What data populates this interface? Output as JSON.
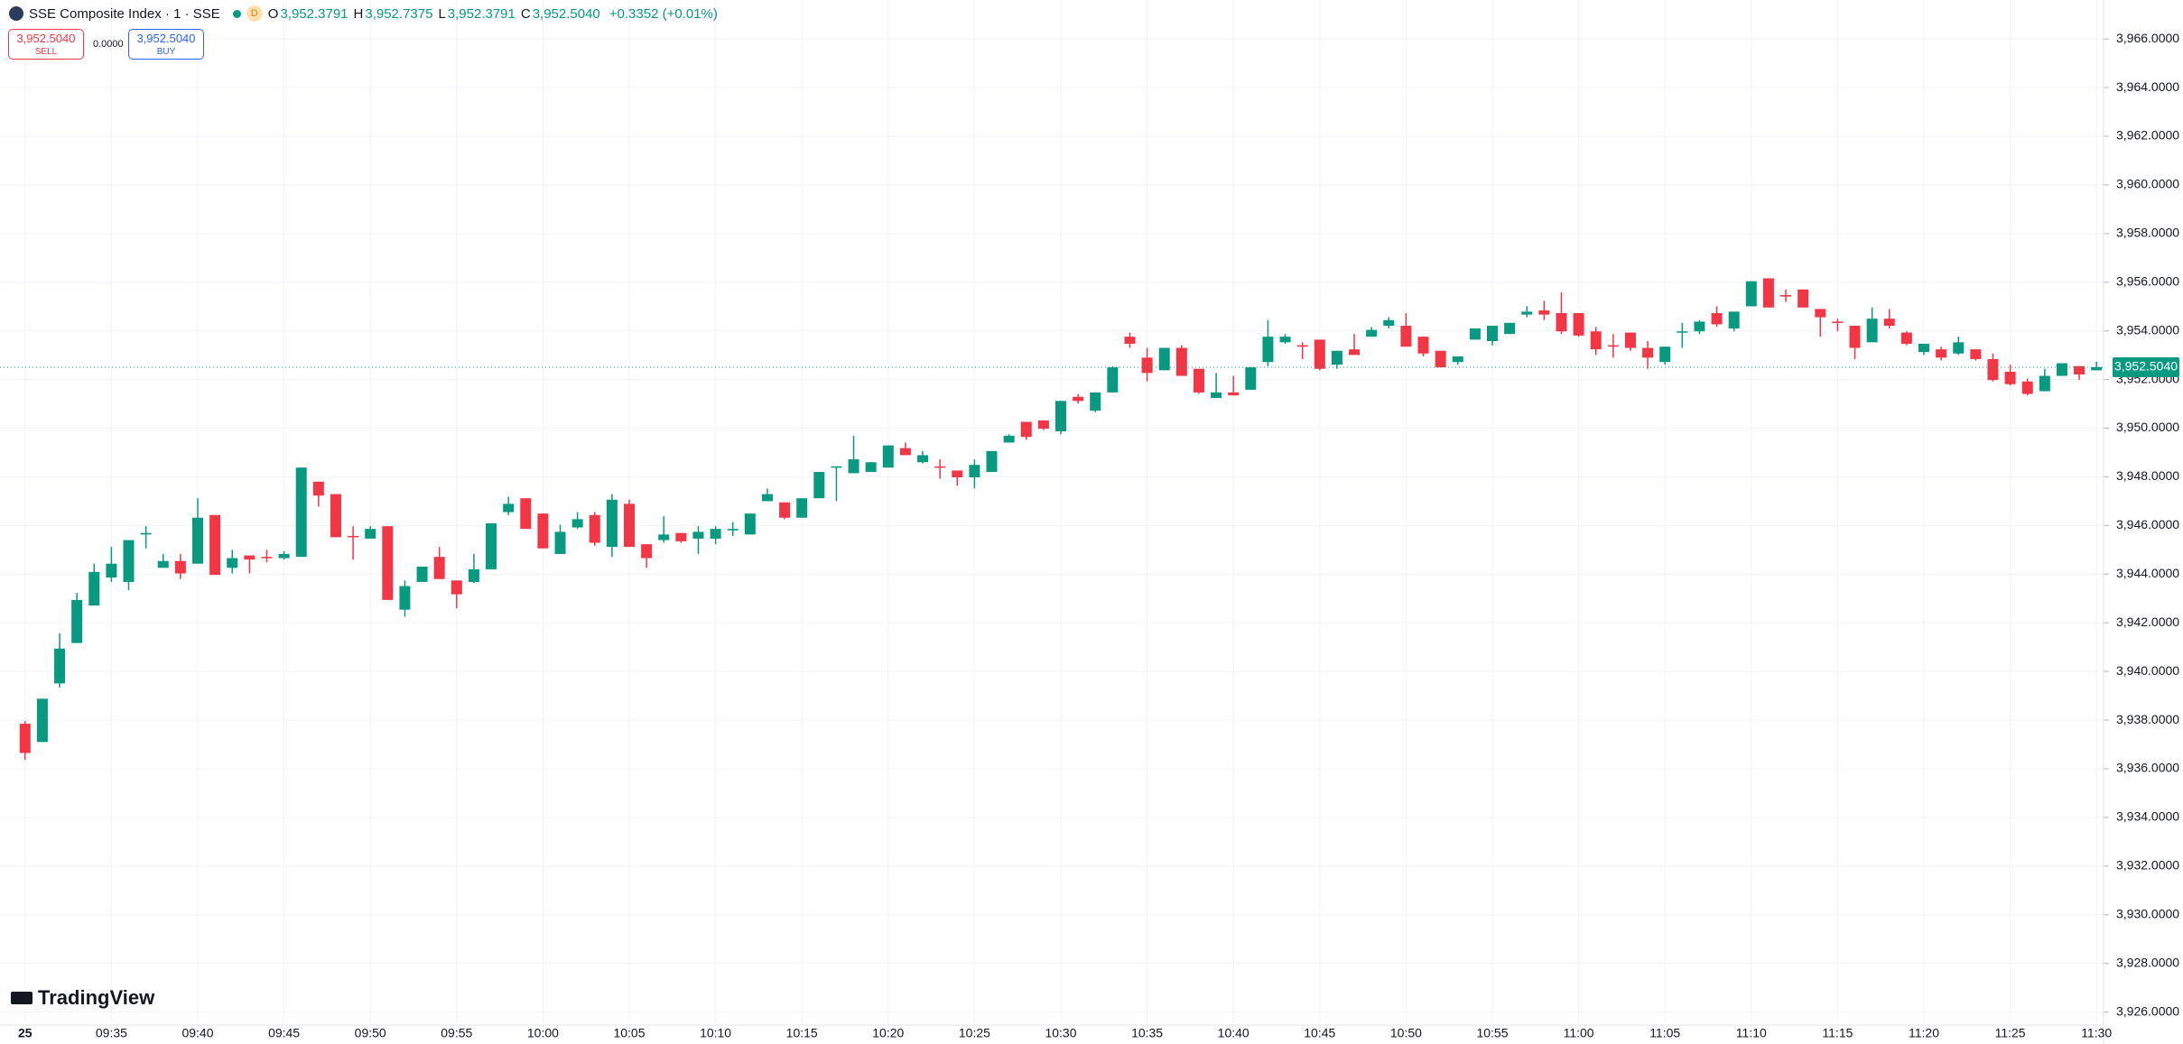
{
  "header": {
    "symbol": "SSE Composite Index · 1 · SSE",
    "badge": "D",
    "ohlc": [
      {
        "key": "O",
        "value": "3,952.3791"
      },
      {
        "key": "H",
        "value": "3,952.7375"
      },
      {
        "key": "L",
        "value": "3,952.3791"
      },
      {
        "key": "C",
        "value": "3,952.5040"
      }
    ],
    "change": "+0.3352 (+0.01%)"
  },
  "trade": {
    "sell_price": "3,952.5040",
    "sell_label": "SELL",
    "spread": "0.0000",
    "buy_price": "3,952.5040",
    "buy_label": "BUY"
  },
  "brand": "TradingView",
  "chart_data": {
    "type": "candlestick",
    "up_color": "#089981",
    "down_color": "#f23645",
    "grid": true,
    "categories": [
      "25",
      null,
      null,
      null,
      null,
      "09:35",
      null,
      null,
      null,
      null,
      "09:40",
      null,
      null,
      null,
      null,
      "09:45",
      null,
      null,
      null,
      null,
      "09:50",
      null,
      null,
      null,
      null,
      "09:55",
      null,
      null,
      null,
      null,
      "10:00",
      null,
      null,
      null,
      null,
      "10:05",
      null,
      null,
      null,
      null,
      "10:10",
      null,
      null,
      null,
      null,
      "10:15",
      null,
      null,
      null,
      null,
      "10:20",
      null,
      null,
      null,
      null,
      "10:25",
      null,
      null,
      null,
      null,
      "10:30",
      null,
      null,
      null,
      null,
      "10:35",
      null,
      null,
      null,
      null,
      "10:40",
      null,
      null,
      null,
      null,
      "10:45",
      null,
      null,
      null,
      null,
      "10:50",
      null,
      null,
      null,
      null,
      "10:55",
      null,
      null,
      null,
      null,
      "11:00",
      null,
      null,
      null,
      null,
      "11:05",
      null,
      null,
      null,
      null,
      "11:10",
      null,
      null,
      null,
      null,
      "11:15",
      null,
      null,
      null,
      null,
      "11:20",
      null,
      null,
      null,
      null,
      "11:25",
      null,
      null,
      null,
      null,
      "11:30"
    ],
    "open": [
      3937.85,
      3937.1,
      3939.51,
      3941.17,
      3942.71,
      3943.86,
      3943.68,
      3945.63,
      3944.26,
      3944.54,
      3944.43,
      3946.43,
      3944.26,
      3944.77,
      3944.71,
      3944.66,
      3944.71,
      3947.8,
      3947.29,
      3945.57,
      3945.46,
      3945.97,
      3942.54,
      3943.68,
      3944.71,
      3943.74,
      3943.68,
      3944.2,
      3946.55,
      3947.12,
      3946.49,
      3944.83,
      3945.92,
      3946.43,
      3945.12,
      3946.89,
      3945.23,
      3945.4,
      3945.69,
      3945.46,
      3945.46,
      3945.8,
      3945.63,
      3947.0,
      3946.95,
      3946.32,
      3947.12,
      3948.38,
      3948.15,
      3948.2,
      3948.38,
      3949.18,
      3948.6,
      3948.43,
      3948.26,
      3947.98,
      3948.2,
      3949.41,
      3950.26,
      3950.32,
      3949.87,
      3951.29,
      3950.72,
      3951.47,
      3953.76,
      3952.9,
      3952.38,
      3953.3,
      3952.44,
      3951.24,
      3951.47,
      3951.58,
      3952.72,
      3953.53,
      3953.41,
      3953.64,
      3952.61,
      3953.24,
      3953.76,
      3954.21,
      3954.21,
      3953.76,
      3953.18,
      3952.72,
      3953.64,
      3953.58,
      3953.87,
      3954.67,
      3954.84,
      3954.73,
      3954.73,
      3953.98,
      3953.41,
      3953.93,
      3953.3,
      3952.72,
      3953.93,
      3953.98,
      3954.73,
      3954.1,
      3955.01,
      3956.16,
      3955.47,
      3955.7,
      3954.9,
      3954.38,
      3954.21,
      3953.53,
      3954.5,
      3953.93,
      3953.13,
      3953.24,
      3953.07,
      3953.24,
      3952.84,
      3952.32,
      3951.92,
      3951.52,
      3952.15,
      3952.55,
      3952.3791
    ],
    "high": [
      3937.96,
      3938.88,
      3941.57,
      3943.23,
      3944.43,
      3945.12,
      3945.4,
      3945.97,
      3944.83,
      3944.83,
      3947.12,
      3946.43,
      3945.0,
      3944.77,
      3945.0,
      3944.94,
      3948.38,
      3947.8,
      3947.29,
      3945.97,
      3945.97,
      3945.97,
      3943.74,
      3944.31,
      3945.12,
      3943.74,
      3944.83,
      3946.09,
      3947.18,
      3947.12,
      3946.49,
      3946.03,
      3946.55,
      3946.55,
      3947.29,
      3947.06,
      3945.23,
      3946.38,
      3945.69,
      3945.97,
      3945.97,
      3946.14,
      3946.49,
      3947.52,
      3946.95,
      3947.12,
      3948.2,
      3948.43,
      3949.69,
      3948.6,
      3949.29,
      3949.41,
      3949.06,
      3948.72,
      3948.26,
      3948.72,
      3949.06,
      3949.75,
      3950.26,
      3950.32,
      3951.12,
      3951.41,
      3951.47,
      3952.55,
      3953.93,
      3953.3,
      3953.3,
      3953.41,
      3952.44,
      3952.27,
      3952.15,
      3952.5,
      3954.44,
      3953.87,
      3953.53,
      3953.64,
      3953.18,
      3953.87,
      3954.16,
      3954.56,
      3954.73,
      3953.76,
      3953.18,
      3952.95,
      3954.1,
      3954.21,
      3954.33,
      3955.01,
      3955.24,
      3955.58,
      3954.73,
      3954.16,
      3953.87,
      3953.93,
      3953.58,
      3953.35,
      3954.33,
      3954.44,
      3955.01,
      3954.79,
      3956.04,
      3956.16,
      3955.7,
      3955.7,
      3954.9,
      3954.5,
      3954.21,
      3954.96,
      3954.9,
      3953.98,
      3953.47,
      3953.35,
      3953.76,
      3953.24,
      3953.07,
      3952.61,
      3952.04,
      3952.44,
      3952.67,
      3952.55,
      3952.7375
    ],
    "low": [
      3936.36,
      3937.1,
      3939.34,
      3941.17,
      3942.71,
      3943.68,
      3943.34,
      3945.06,
      3944.26,
      3943.8,
      3944.43,
      3943.97,
      3944.03,
      3944.03,
      3944.49,
      3944.6,
      3944.71,
      3946.77,
      3945.52,
      3944.6,
      3945.46,
      3942.94,
      3942.25,
      3943.68,
      3943.8,
      3942.6,
      3943.63,
      3944.2,
      3946.43,
      3945.86,
      3945.06,
      3944.83,
      3945.86,
      3945.17,
      3944.71,
      3945.12,
      3944.26,
      3945.29,
      3945.29,
      3944.83,
      3945.23,
      3945.57,
      3945.63,
      3947.0,
      3946.26,
      3946.32,
      3947.12,
      3947.0,
      3948.15,
      3948.2,
      3948.38,
      3948.89,
      3948.55,
      3947.92,
      3947.63,
      3947.52,
      3948.2,
      3949.41,
      3949.52,
      3949.92,
      3949.75,
      3951.01,
      3950.66,
      3951.47,
      3953.3,
      3951.92,
      3952.38,
      3952.15,
      3951.41,
      3951.24,
      3951.35,
      3951.58,
      3952.55,
      3953.47,
      3952.84,
      3952.38,
      3952.44,
      3953.01,
      3953.76,
      3954.1,
      3953.35,
      3952.95,
      3952.5,
      3952.61,
      3953.64,
      3953.41,
      3953.87,
      3954.56,
      3954.44,
      3953.87,
      3953.76,
      3953.01,
      3952.9,
      3953.18,
      3952.44,
      3952.61,
      3953.3,
      3953.87,
      3954.16,
      3953.98,
      3955.01,
      3954.96,
      3955.19,
      3954.96,
      3953.76,
      3953.98,
      3952.84,
      3953.53,
      3954.1,
      3953.41,
      3953.01,
      3952.78,
      3953.01,
      3952.78,
      3951.92,
      3951.75,
      3951.35,
      3951.52,
      3952.15,
      3951.98,
      3952.3791
    ],
    "close": [
      3936.65,
      3938.88,
      3940.94,
      3942.94,
      3944.09,
      3944.43,
      3945.4,
      3945.69,
      3944.54,
      3944.03,
      3946.32,
      3943.97,
      3944.66,
      3944.6,
      3944.66,
      3944.83,
      3948.38,
      3947.23,
      3945.52,
      3945.52,
      3945.86,
      3942.94,
      3943.51,
      3944.31,
      3943.8,
      3943.17,
      3944.2,
      3946.09,
      3946.89,
      3945.86,
      3945.06,
      3945.74,
      3946.26,
      3945.29,
      3947.06,
      3945.12,
      3944.66,
      3945.63,
      3945.35,
      3945.74,
      3945.86,
      3945.86,
      3946.49,
      3947.29,
      3946.32,
      3947.12,
      3948.2,
      3948.43,
      3948.72,
      3948.6,
      3949.29,
      3948.89,
      3948.89,
      3948.38,
      3947.98,
      3948.49,
      3949.06,
      3949.69,
      3949.64,
      3949.98,
      3951.12,
      3951.12,
      3951.47,
      3952.5,
      3953.47,
      3952.27,
      3953.3,
      3952.15,
      3951.47,
      3951.47,
      3951.35,
      3952.5,
      3953.76,
      3953.76,
      3953.35,
      3952.44,
      3953.18,
      3953.01,
      3954.04,
      3954.44,
      3953.35,
      3953.07,
      3952.5,
      3952.95,
      3954.1,
      3954.21,
      3954.33,
      3954.79,
      3954.67,
      3953.98,
      3953.81,
      3953.24,
      3953.35,
      3953.3,
      3952.9,
      3953.35,
      3953.98,
      3954.38,
      3954.27,
      3954.79,
      3956.04,
      3954.96,
      3955.41,
      3954.96,
      3954.56,
      3954.33,
      3953.3,
      3954.5,
      3954.21,
      3953.47,
      3953.47,
      3952.9,
      3953.53,
      3952.84,
      3951.98,
      3951.81,
      3951.41,
      3952.15,
      3952.67,
      3952.21,
      3952.504
    ],
    "ylim": [
      3925.54,
      3967.6
    ],
    "yticks": [
      {
        "value": 3926,
        "label": "3,926.0000"
      },
      {
        "value": 3928,
        "label": "3,928.0000"
      },
      {
        "value": 3930,
        "label": "3,930.0000"
      },
      {
        "value": 3932,
        "label": "3,932.0000"
      },
      {
        "value": 3934,
        "label": "3,934.0000"
      },
      {
        "value": 3936,
        "label": "3,936.0000"
      },
      {
        "value": 3938,
        "label": "3,938.0000"
      },
      {
        "value": 3940,
        "label": "3,940.0000"
      },
      {
        "value": 3942,
        "label": "3,942.0000"
      },
      {
        "value": 3944,
        "label": "3,944.0000"
      },
      {
        "value": 3946,
        "label": "3,946.0000"
      },
      {
        "value": 3948,
        "label": "3,948.0000"
      },
      {
        "value": 3950,
        "label": "3,950.0000"
      },
      {
        "value": 3952,
        "label": "3,952.0000"
      },
      {
        "value": 3954,
        "label": "3,954.0000"
      },
      {
        "value": 3956,
        "label": "3,956.0000"
      },
      {
        "value": 3958,
        "label": "3,958.0000"
      },
      {
        "value": 3960,
        "label": "3,960.0000"
      },
      {
        "value": 3962,
        "label": "3,962.0000"
      },
      {
        "value": 3964,
        "label": "3,964.0000"
      },
      {
        "value": 3966,
        "label": "3,966.0000"
      }
    ],
    "last_price": {
      "value": 3952.504,
      "label": "3,952.5040"
    }
  }
}
